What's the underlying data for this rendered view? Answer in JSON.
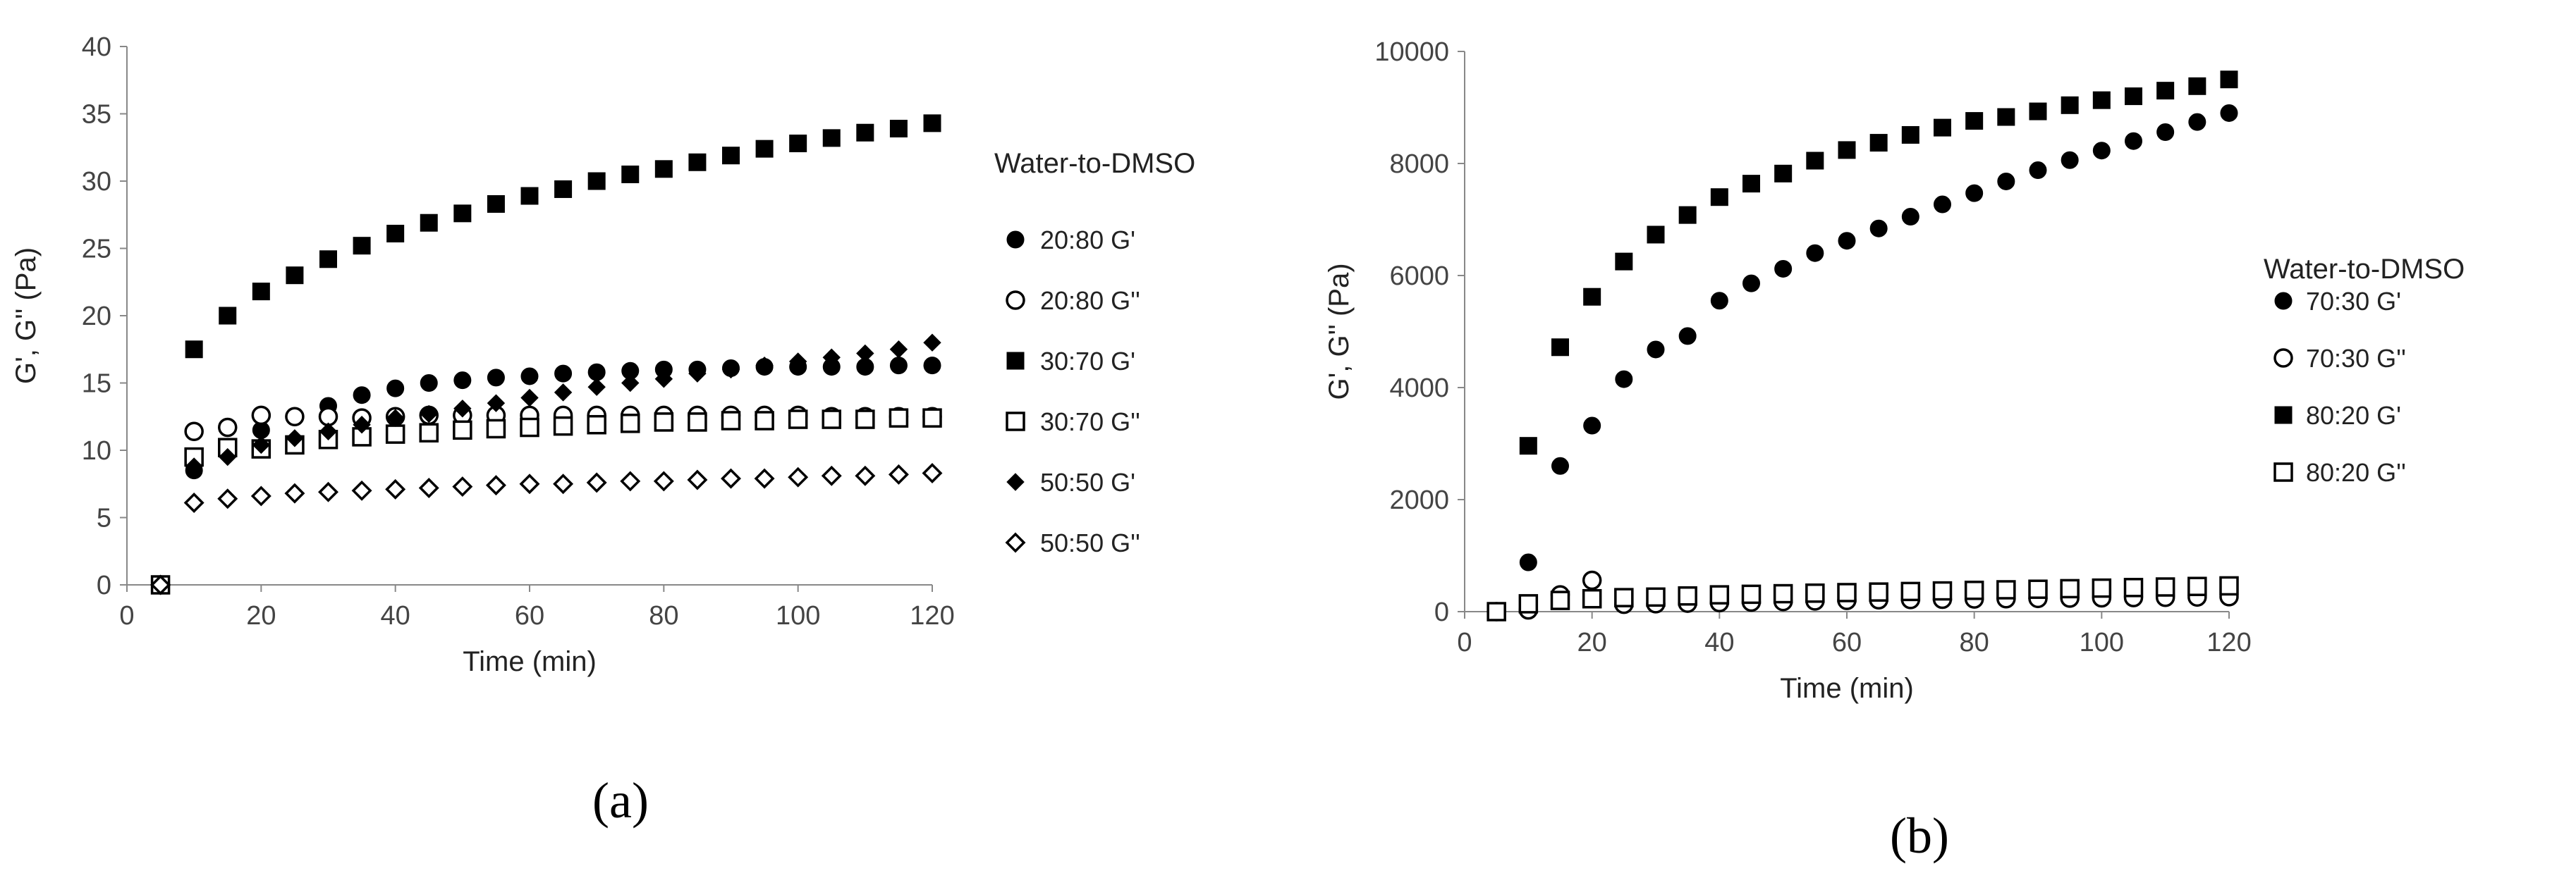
{
  "chart_data": [
    {
      "type": "scatter",
      "panel_label": "(a)",
      "xlabel": "Time (min)",
      "ylabel": "G', G'' (Pa)",
      "xlim": [
        0,
        120
      ],
      "ylim": [
        0,
        40
      ],
      "xticks": [
        0,
        20,
        40,
        60,
        80,
        100,
        120
      ],
      "yticks": [
        0,
        5,
        10,
        15,
        20,
        25,
        30,
        35,
        40
      ],
      "legend_title": "Water-to-DMSO",
      "legend_position": "right",
      "grid": false,
      "series": [
        {
          "name": "20:80 G'",
          "marker": "circle",
          "filled": true,
          "x": [
            5,
            10,
            15,
            20,
            25,
            30,
            35,
            40,
            45,
            50,
            55,
            60,
            65,
            70,
            75,
            80,
            85,
            90,
            95,
            100,
            105,
            110,
            115,
            120
          ],
          "y": [
            0,
            8.5,
            10,
            11.5,
            12.5,
            13.3,
            14.1,
            14.6,
            15.0,
            15.2,
            15.4,
            15.5,
            15.7,
            15.8,
            15.9,
            16.0,
            16.0,
            16.1,
            16.2,
            16.2,
            16.2,
            16.2,
            16.3,
            16.3
          ]
        },
        {
          "name": "20:80 G''",
          "marker": "circle",
          "filled": false,
          "x": [
            5,
            10,
            15,
            20,
            25,
            30,
            35,
            40,
            45,
            50,
            55,
            60,
            65,
            70,
            75,
            80,
            85,
            90,
            95,
            100,
            105,
            110,
            115,
            120
          ],
          "y": [
            0,
            11.4,
            11.7,
            12.6,
            12.5,
            12.5,
            12.4,
            12.5,
            12.6,
            12.6,
            12.6,
            12.6,
            12.6,
            12.6,
            12.6,
            12.6,
            12.6,
            12.6,
            12.6,
            12.6,
            12.5,
            12.5,
            12.5,
            12.5
          ]
        },
        {
          "name": "30:70 G'",
          "marker": "square",
          "filled": true,
          "x": [
            5,
            10,
            15,
            20,
            25,
            30,
            35,
            40,
            45,
            50,
            55,
            60,
            65,
            70,
            75,
            80,
            85,
            90,
            95,
            100,
            105,
            110,
            115,
            120
          ],
          "y": [
            0,
            17.5,
            20.0,
            21.8,
            23.0,
            24.2,
            25.2,
            26.1,
            26.9,
            27.6,
            28.3,
            28.9,
            29.4,
            30.0,
            30.5,
            30.9,
            31.4,
            31.9,
            32.4,
            32.8,
            33.2,
            33.6,
            33.9,
            34.3
          ]
        },
        {
          "name": "30:70 G''",
          "marker": "square",
          "filled": false,
          "x": [
            5,
            10,
            15,
            20,
            25,
            30,
            35,
            40,
            45,
            50,
            55,
            60,
            65,
            70,
            75,
            80,
            85,
            90,
            95,
            100,
            105,
            110,
            115,
            120
          ],
          "y": [
            0,
            9.5,
            10.2,
            10.1,
            10.4,
            10.8,
            11.0,
            11.2,
            11.3,
            11.5,
            11.6,
            11.7,
            11.8,
            11.9,
            12.0,
            12.1,
            12.1,
            12.2,
            12.2,
            12.3,
            12.3,
            12.3,
            12.4,
            12.4
          ]
        },
        {
          "name": "50:50 G'",
          "marker": "diamond",
          "filled": true,
          "x": [
            5,
            10,
            15,
            20,
            25,
            30,
            35,
            40,
            45,
            50,
            55,
            60,
            65,
            70,
            75,
            80,
            85,
            90,
            95,
            100,
            105,
            110,
            115,
            120
          ],
          "y": [
            0,
            8.8,
            9.5,
            10.4,
            10.9,
            11.4,
            11.9,
            12.4,
            12.7,
            13.1,
            13.5,
            13.9,
            14.3,
            14.7,
            15.0,
            15.3,
            15.7,
            16.0,
            16.3,
            16.6,
            16.9,
            17.2,
            17.5,
            18.0
          ]
        },
        {
          "name": "50:50 G''",
          "marker": "diamond",
          "filled": false,
          "x": [
            5,
            10,
            15,
            20,
            25,
            30,
            35,
            40,
            45,
            50,
            55,
            60,
            65,
            70,
            75,
            80,
            85,
            90,
            95,
            100,
            105,
            110,
            115,
            120
          ],
          "y": [
            0,
            6.1,
            6.4,
            6.6,
            6.8,
            6.9,
            7.0,
            7.1,
            7.2,
            7.3,
            7.4,
            7.5,
            7.5,
            7.6,
            7.7,
            7.7,
            7.8,
            7.9,
            7.9,
            8.0,
            8.1,
            8.1,
            8.2,
            8.3
          ]
        }
      ]
    },
    {
      "type": "scatter",
      "panel_label": "(b)",
      "xlabel": "Time (min)",
      "ylabel": "G', G'' (Pa)",
      "xlim": [
        0,
        120
      ],
      "ylim": [
        0,
        10000
      ],
      "xticks": [
        0,
        20,
        40,
        60,
        80,
        100,
        120
      ],
      "yticks": [
        0,
        2000,
        4000,
        6000,
        8000,
        10000
      ],
      "legend_title": "Water-to-DMSO",
      "legend_position": "right",
      "grid": false,
      "series": [
        {
          "name": "70:30 G'",
          "marker": "circle",
          "filled": true,
          "x": [
            5,
            10,
            15,
            20,
            25,
            30,
            35,
            40,
            45,
            50,
            55,
            60,
            65,
            70,
            75,
            80,
            85,
            90,
            95,
            100,
            105,
            110,
            115,
            120
          ],
          "y": [
            0,
            880,
            2600,
            3320,
            4150,
            4680,
            4920,
            5550,
            5860,
            6120,
            6400,
            6620,
            6840,
            7050,
            7270,
            7470,
            7680,
            7880,
            8060,
            8230,
            8400,
            8560,
            8740,
            8900
          ]
        },
        {
          "name": "70:30 G''",
          "marker": "circle",
          "filled": false,
          "x": [
            5,
            10,
            15,
            20,
            25,
            30,
            35,
            40,
            45,
            50,
            55,
            60,
            65,
            70,
            75,
            80,
            85,
            90,
            95,
            100,
            105,
            110,
            115,
            120
          ],
          "y": [
            0,
            30,
            300,
            560,
            130,
            140,
            150,
            160,
            170,
            180,
            190,
            200,
            210,
            215,
            220,
            225,
            230,
            235,
            240,
            245,
            250,
            255,
            260,
            265
          ]
        },
        {
          "name": "80:20 G'",
          "marker": "square",
          "filled": true,
          "x": [
            5,
            10,
            15,
            20,
            25,
            30,
            35,
            40,
            45,
            50,
            55,
            60,
            65,
            70,
            75,
            80,
            85,
            90,
            95,
            100,
            105,
            110,
            115,
            120
          ],
          "y": [
            0,
            2960,
            4720,
            5620,
            6250,
            6730,
            7080,
            7400,
            7640,
            7820,
            8050,
            8240,
            8370,
            8510,
            8640,
            8760,
            8830,
            8930,
            9040,
            9130,
            9200,
            9300,
            9380,
            9500
          ]
        },
        {
          "name": "80:20 G''",
          "marker": "square",
          "filled": false,
          "x": [
            5,
            10,
            15,
            20,
            25,
            30,
            35,
            40,
            45,
            50,
            55,
            60,
            65,
            70,
            75,
            80,
            85,
            90,
            95,
            100,
            105,
            110,
            115,
            120
          ],
          "y": [
            0,
            140,
            200,
            230,
            250,
            260,
            280,
            300,
            310,
            320,
            330,
            340,
            350,
            360,
            370,
            380,
            390,
            400,
            410,
            420,
            430,
            440,
            450,
            460
          ]
        }
      ]
    }
  ]
}
